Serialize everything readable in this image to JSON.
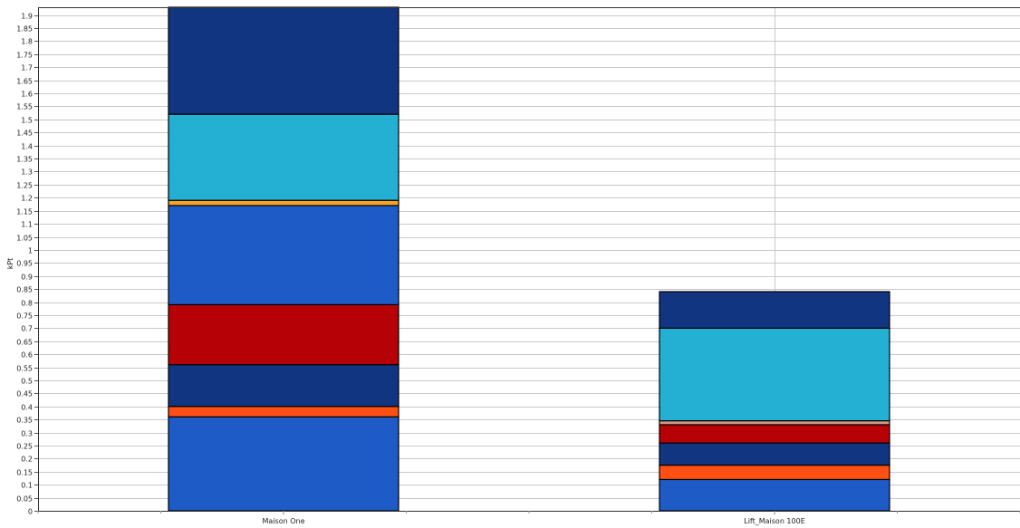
{
  "chart_data": {
    "type": "bar",
    "stacked": true,
    "title": "",
    "xlabel": "",
    "ylabel": "kPt",
    "ylim": [
      0,
      1.93
    ],
    "ytick_step": 0.05,
    "grid": true,
    "legend": "none",
    "categories": [
      "Maison One",
      "Lift_Maison 100E"
    ],
    "series": [
      {
        "color": "#1f5bc6",
        "values": [
          0.36,
          0.12
        ]
      },
      {
        "color": "#ff4f12",
        "values": [
          0.04,
          0.055
        ]
      },
      {
        "color": "#123582",
        "values": [
          0.16,
          0.085
        ]
      },
      {
        "color": "#b60207",
        "values": [
          0.23,
          0.07
        ]
      },
      {
        "color": "#d39a83",
        "values": [
          0.0,
          0.015
        ]
      },
      {
        "color": "#1f5bc6",
        "values": [
          0.38,
          0.0
        ]
      },
      {
        "color": "#f7a325",
        "values": [
          0.02,
          0.0
        ]
      },
      {
        "color": "#24b0d3",
        "values": [
          0.33,
          0.355
        ]
      },
      {
        "color": "#123582",
        "values": [
          0.41,
          0.14
        ]
      }
    ]
  }
}
